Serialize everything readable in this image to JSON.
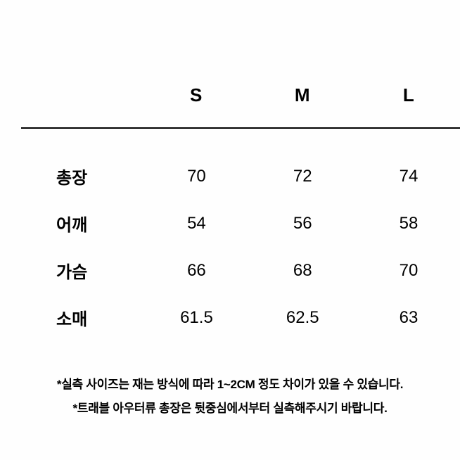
{
  "table": {
    "columns": [
      "S",
      "M",
      "L"
    ],
    "rows": [
      {
        "label": "총장",
        "values": [
          "70",
          "72",
          "74"
        ]
      },
      {
        "label": "어깨",
        "values": [
          "54",
          "56",
          "58"
        ]
      },
      {
        "label": "가슴",
        "values": [
          "66",
          "68",
          "70"
        ]
      },
      {
        "label": "소매",
        "values": [
          "61.5",
          "62.5",
          "63"
        ]
      }
    ],
    "header_fontsize": 26,
    "header_fontweight": 700,
    "label_fontsize": 24,
    "label_fontweight": 700,
    "cell_fontsize": 24,
    "cell_fontweight": 400,
    "border_color": "#000000",
    "border_width": 2,
    "text_color": "#000000",
    "background_color": "#fefefe",
    "col_widths": {
      "label": 180,
      "s": 150,
      "m": 160,
      "l": 150
    },
    "row_spacing": 32
  },
  "notes": {
    "lines": [
      "*실측 사이즈는 재는 방식에 따라 1~2CM 정도 차이가 있을 수 있습니다.",
      "*트래블 아우터류 총장은 뒷중심에서부터 실측해주시기 바랍니다."
    ],
    "fontsize": 17,
    "fontweight": 700,
    "color": "#000000"
  }
}
